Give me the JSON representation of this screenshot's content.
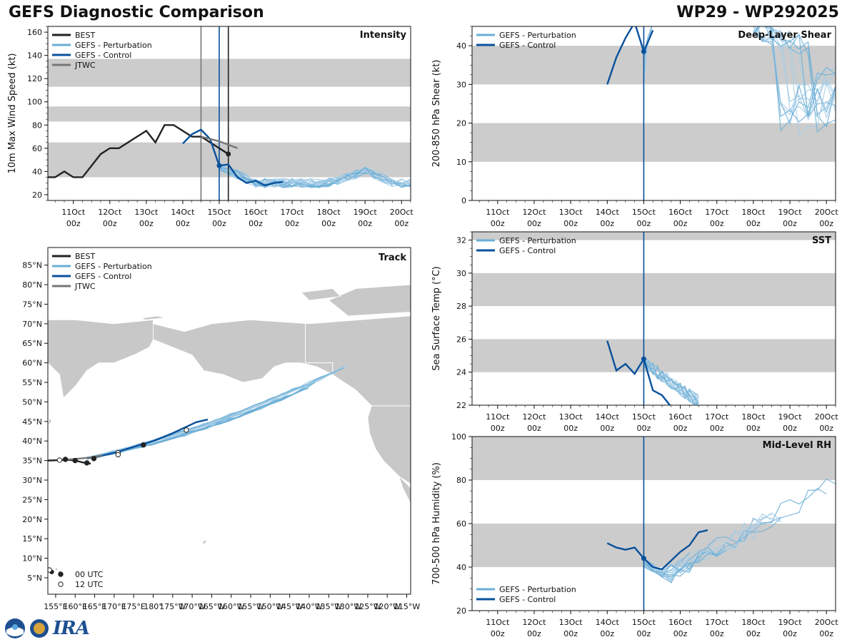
{
  "header": {
    "title": "GEFS Diagnostic Comparison",
    "storm": "WP29 - WP292025"
  },
  "colors": {
    "best": "#222222",
    "perturbation": "#6baed6",
    "perturbation_light": "#a6cde6",
    "control": "#08519c",
    "jtwc": "#777777",
    "band": "#cccccc",
    "land": "#c8c8c8"
  },
  "time_axis": {
    "ticks": [
      {
        "day": "11Oct",
        "hour": "00z"
      },
      {
        "day": "12Oct",
        "hour": "00z"
      },
      {
        "day": "13Oct",
        "hour": "00z"
      },
      {
        "day": "14Oct",
        "hour": "00z"
      },
      {
        "day": "15Oct",
        "hour": "00z"
      },
      {
        "day": "16Oct",
        "hour": "00z"
      },
      {
        "day": "17Oct",
        "hour": "00z"
      },
      {
        "day": "18Oct",
        "hour": "00z"
      },
      {
        "day": "19Oct",
        "hour": "00z"
      },
      {
        "day": "20Oct",
        "hour": "00z"
      }
    ]
  },
  "chart_data": [
    {
      "type": "line",
      "panel": "intensity",
      "title": "Intensity",
      "ylabel": "10m Max Wind Speed (kt)",
      "ylim": [
        15,
        165
      ],
      "xlim": [
        10.3,
        20.25
      ],
      "yticks": [
        20,
        40,
        60,
        80,
        100,
        120,
        140,
        160
      ],
      "bands": [
        [
          35,
          65
        ],
        [
          83,
          96
        ],
        [
          113,
          137
        ]
      ],
      "vlines": [
        {
          "x": 14.5,
          "color": "jtwc"
        },
        {
          "x": 15.0,
          "color": "control"
        },
        {
          "x": 15.25,
          "color": "best"
        }
      ],
      "legend": [
        "BEST",
        "GEFS - Perturbation",
        "GEFS - Control",
        "JTWC"
      ],
      "series": [
        {
          "name": "BEST",
          "x": [
            10.3,
            10.5,
            10.75,
            11.0,
            11.25,
            11.5,
            11.75,
            12.0,
            12.25,
            12.5,
            12.75,
            13.0,
            13.25,
            13.5,
            13.75,
            14.0,
            14.25,
            14.5,
            14.75,
            15.0,
            15.25
          ],
          "y": [
            35,
            35,
            40,
            35,
            35,
            45,
            55,
            60,
            60,
            65,
            70,
            75,
            65,
            80,
            80,
            75,
            70,
            70,
            65,
            60,
            55
          ]
        },
        {
          "name": "BEST-ext",
          "x": [
            15.0,
            15.25
          ],
          "y": [
            60,
            55
          ]
        },
        {
          "name": "GEFS - Control",
          "x": [
            14.0,
            14.25,
            14.5,
            14.75,
            15.0,
            15.25,
            15.5,
            15.75,
            16.0,
            16.25,
            16.5,
            16.75
          ],
          "y": [
            64,
            72,
            76,
            68,
            45,
            46,
            35,
            30,
            32,
            28,
            30,
            31
          ]
        },
        {
          "name": "JTWC",
          "x": [
            14.5,
            15.0,
            15.5
          ],
          "y": [
            70,
            66,
            60
          ]
        }
      ]
    },
    {
      "type": "line",
      "panel": "shear",
      "title": "Deep-Layer Shear",
      "ylabel": "200-850 hPa Shear (kt)",
      "ylim": [
        0,
        45
      ],
      "xlim": [
        10.3,
        20.25
      ],
      "yticks": [
        0,
        10,
        20,
        30,
        40
      ],
      "bands": [
        [
          10,
          20
        ],
        [
          30,
          40
        ]
      ],
      "vlines": [
        {
          "x": 15.0,
          "color": "control"
        }
      ],
      "legend": [
        "GEFS - Perturbation",
        "GEFS - Control"
      ],
      "series": [
        {
          "name": "GEFS - Control",
          "x": [
            14.0,
            14.25,
            14.5,
            14.75,
            15.0,
            15.25
          ],
          "y": [
            30,
            37,
            42,
            46,
            38.5,
            44
          ]
        }
      ]
    },
    {
      "type": "line",
      "panel": "sst",
      "title": "SST",
      "ylabel": "Sea Surface Temp (°C)",
      "ylim": [
        22,
        32.5
      ],
      "xlim": [
        10.3,
        20.25
      ],
      "yticks": [
        22,
        24,
        26,
        28,
        30,
        32
      ],
      "bands": [
        [
          24,
          26
        ],
        [
          28,
          30
        ],
        [
          32,
          33
        ]
      ],
      "vlines": [
        {
          "x": 15.0,
          "color": "control"
        }
      ],
      "legend": [
        "GEFS - Perturbation",
        "GEFS - Control"
      ],
      "series": [
        {
          "name": "GEFS - Control",
          "x": [
            14.0,
            14.25,
            14.5,
            14.75,
            15.0,
            15.25,
            15.5,
            15.75
          ],
          "y": [
            25.9,
            24.1,
            24.5,
            23.9,
            24.8,
            22.9,
            22.6,
            21.9
          ]
        }
      ]
    },
    {
      "type": "line",
      "panel": "rh",
      "title": "Mid-Level RH",
      "ylabel": "700-500 hPa Humidity (%)",
      "ylim": [
        20,
        100
      ],
      "xlim": [
        10.3,
        20.25
      ],
      "yticks": [
        20,
        40,
        60,
        80,
        100
      ],
      "bands": [
        [
          40,
          60
        ],
        [
          80,
          100
        ]
      ],
      "vlines": [
        {
          "x": 15.0,
          "color": "control"
        }
      ],
      "legend": [
        "GEFS - Perturbation",
        "GEFS - Control"
      ],
      "series": [
        {
          "name": "GEFS - Control",
          "x": [
            14.0,
            14.25,
            14.5,
            14.75,
            15.0,
            15.25,
            15.5,
            15.75,
            16.0,
            16.25,
            16.5,
            16.75
          ],
          "y": [
            51,
            49,
            48,
            49,
            44,
            40,
            39,
            43,
            47,
            50,
            56,
            57
          ]
        }
      ]
    },
    {
      "type": "scatter",
      "panel": "track",
      "title": "Track",
      "xlabel": "",
      "ylabel": "",
      "xticks": [
        "155°E",
        "160°E",
        "165°E",
        "170°E",
        "175°E",
        "180°",
        "175°W",
        "170°W",
        "165°W",
        "160°W",
        "155°W",
        "150°W",
        "145°W",
        "140°W",
        "135°W",
        "130°W",
        "125°W",
        "120°W",
        "115°W"
      ],
      "yticks": [
        "5°N",
        "10°N",
        "15°N",
        "20°N",
        "25°N",
        "30°N",
        "35°N",
        "40°N",
        "45°N",
        "50°N",
        "55°N",
        "60°N",
        "65°N",
        "70°N",
        "75°N",
        "80°N",
        "85°N"
      ],
      "legend": [
        "BEST",
        "GEFS - Perturbation",
        "GEFS - Control",
        "JTWC"
      ],
      "marker_legend": [
        "00 UTC",
        "12 UTC"
      ]
    }
  ]
}
